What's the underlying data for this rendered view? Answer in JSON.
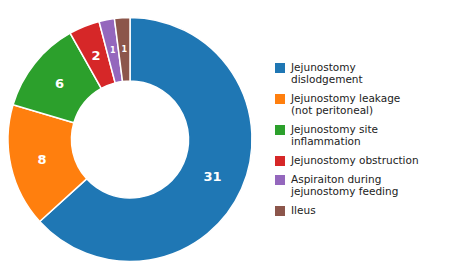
{
  "chart_data": {
    "type": "donut",
    "categories": [
      "Jejunostomy\ndislodgement",
      "Jejunostomy leakage\n(not peritoneal)",
      "Jejunostomy site\ninflammation",
      "Jejunostomy obstruction",
      "Aspiraiton during\njejunostomy feeding",
      "Ileus"
    ],
    "values": [
      31,
      8,
      6,
      2,
      1,
      1
    ],
    "data_labels": true,
    "legend": "right"
  }
}
